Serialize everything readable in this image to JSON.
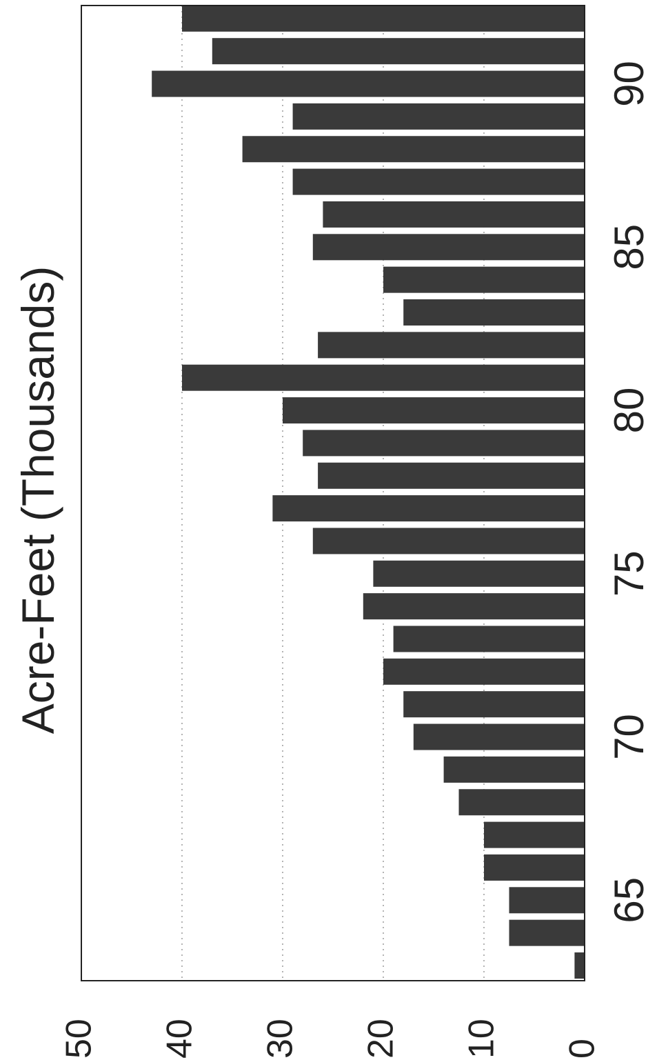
{
  "chart_data": {
    "type": "bar",
    "orientation": "rotated 90° clockwise (year axis runs vertically, value axis horizontally)",
    "ylabel": "Acre-Feet  (Thousands)",
    "xlabel": "",
    "y_ticks": [
      "0",
      "10",
      "20",
      "30",
      "40",
      "50"
    ],
    "ylim": [
      0,
      50
    ],
    "x_ticks": [
      "65",
      "70",
      "75",
      "80",
      "85",
      "90"
    ],
    "x_tick_values": [
      65,
      70,
      75,
      80,
      85,
      90
    ],
    "grid": "dotted lines at 10, 20, 30, 40",
    "x": [
      63,
      64,
      65,
      66,
      67,
      68,
      69,
      70,
      71,
      72,
      73,
      74,
      75,
      76,
      77,
      78,
      79,
      80,
      81,
      82,
      83,
      84,
      85,
      86,
      87,
      88,
      89,
      90,
      91,
      92
    ],
    "values": [
      1,
      7.5,
      7.5,
      10,
      10,
      12.5,
      14,
      17,
      18,
      20,
      19,
      22,
      21,
      27,
      31,
      26.5,
      28,
      30,
      40,
      26.5,
      18,
      20,
      27,
      26,
      29,
      34,
      29,
      43,
      37,
      40
    ],
    "colors": {
      "bar": "#3a3a3a",
      "frame": "#222222",
      "grid": "#9a9a9a",
      "background": "#ffffff"
    }
  }
}
